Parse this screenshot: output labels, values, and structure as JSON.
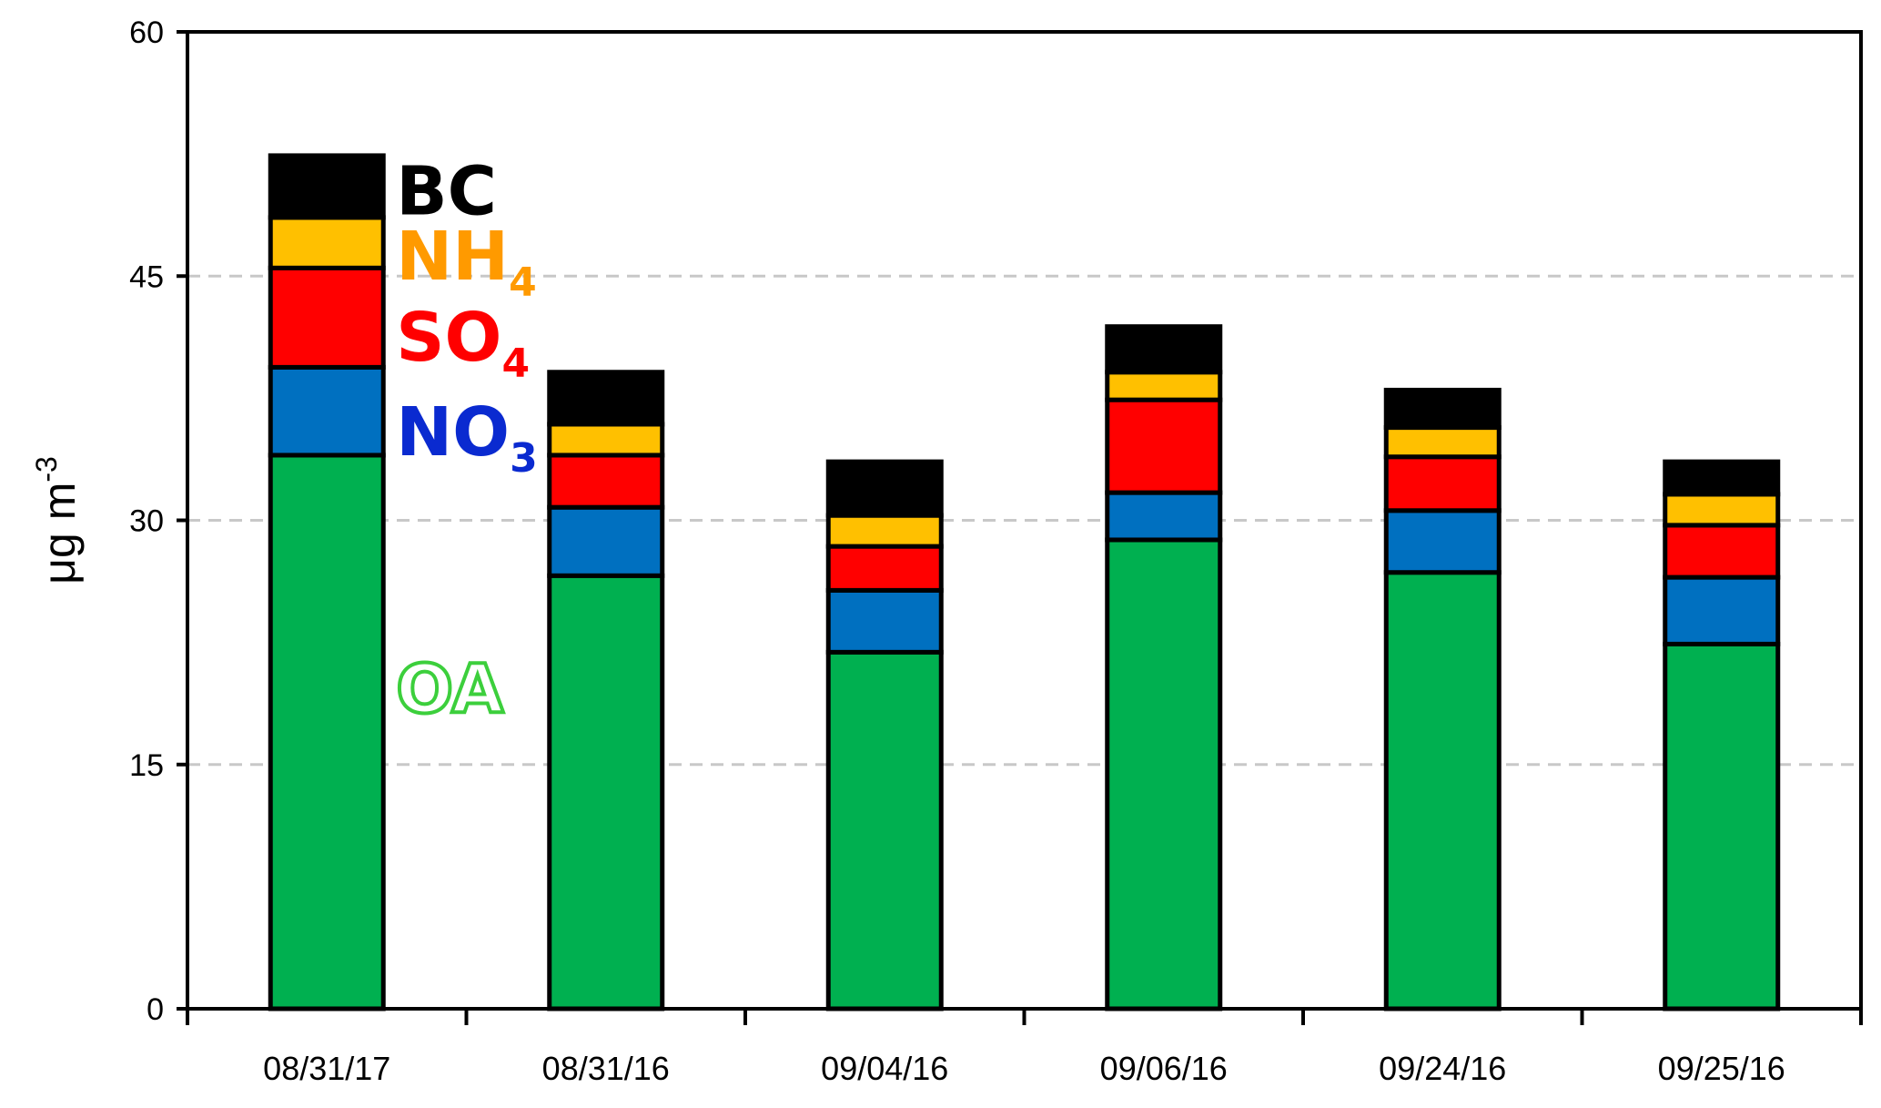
{
  "chart_data": {
    "type": "bar",
    "stacked": true,
    "categories": [
      "08/31/17",
      "08/31/16",
      "09/04/16",
      "09/06/16",
      "09/24/16",
      "09/25/16"
    ],
    "series": [
      {
        "name": "OA",
        "label_main": "OA",
        "label_sub": "",
        "color": "#00b050",
        "values": [
          34.0,
          26.6,
          21.9,
          28.8,
          26.8,
          22.4
        ]
      },
      {
        "name": "NO3",
        "label_main": "NO",
        "label_sub": "3",
        "color": "#0070c0",
        "label_color": "#0a2ad0",
        "values": [
          5.4,
          4.2,
          3.8,
          2.9,
          3.8,
          4.1
        ]
      },
      {
        "name": "SO4",
        "label_main": "SO",
        "label_sub": "4",
        "color": "#ff0000",
        "label_color": "#ff0000",
        "values": [
          6.1,
          3.2,
          2.7,
          5.7,
          3.3,
          3.2
        ]
      },
      {
        "name": "NH4",
        "label_main": "NH",
        "label_sub": "4",
        "color": "#ffc000",
        "label_color": "#ff9a00",
        "values": [
          3.1,
          1.9,
          1.9,
          1.7,
          1.8,
          1.9
        ]
      },
      {
        "name": "BC",
        "label_main": "BC",
        "label_sub": "",
        "color": "#000000",
        "label_color": "#000000",
        "values": [
          3.8,
          3.2,
          3.3,
          2.8,
          2.3,
          2.0
        ]
      }
    ],
    "ylabel_main": "μg m",
    "ylabel_sup": "-3",
    "ylim": [
      0,
      60
    ],
    "yticks": [
      0,
      15,
      30,
      45,
      60
    ],
    "grid": true,
    "legend_placement": "inline-right-of-first-bar"
  }
}
